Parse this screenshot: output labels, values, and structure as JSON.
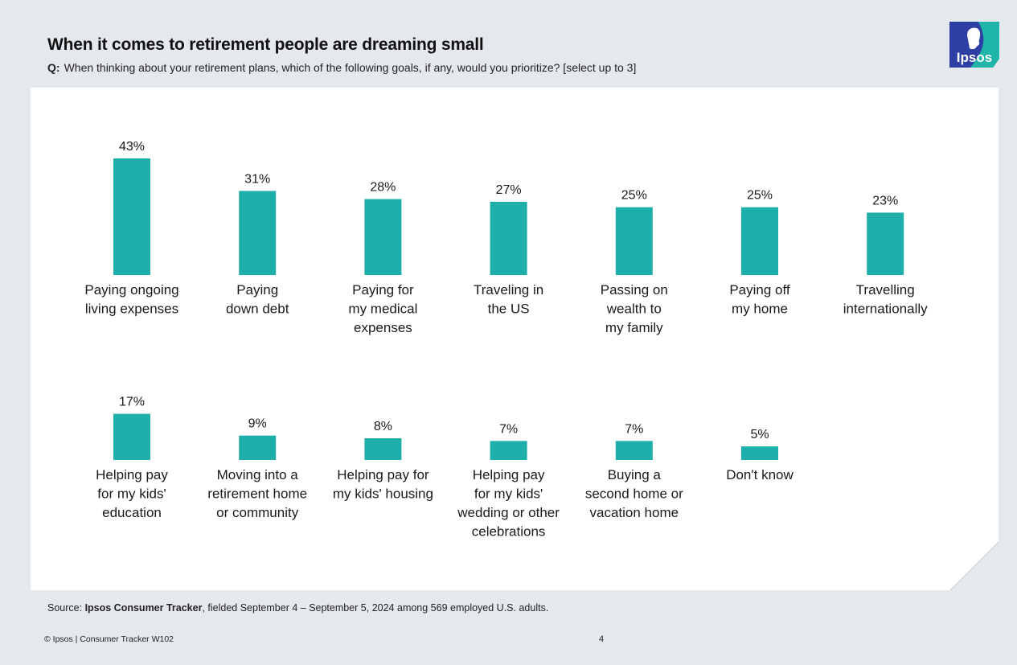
{
  "header": {
    "title": "When it comes to retirement people are dreaming small",
    "question_label": "Q:",
    "question_text": "When thinking about your retirement plans, which of the following goals, if any, would you prioritize? [select up to 3]"
  },
  "logo": {
    "text": "Ipsos",
    "colors": {
      "blue": "#2e3fa3",
      "teal": "#1fb5a8"
    }
  },
  "colors": {
    "bar": "#1fafaa",
    "panel": "#ffffff",
    "background": "#e5e8ec"
  },
  "chart_data": {
    "type": "bar",
    "unit": "%",
    "ylim": [
      0,
      43
    ],
    "rows": [
      {
        "categories": [
          [
            "Paying ongoing",
            "living expenses"
          ],
          [
            "Paying",
            "down debt"
          ],
          [
            "Paying for",
            "my medical",
            "expenses"
          ],
          [
            "Traveling in",
            "the US"
          ],
          [
            "Passing on",
            "wealth to",
            "my family"
          ],
          [
            "Paying off",
            "my home"
          ],
          [
            "Travelling",
            "internationally"
          ]
        ],
        "values": [
          43,
          31,
          28,
          27,
          25,
          25,
          23
        ],
        "value_labels": [
          "43%",
          "31%",
          "28%",
          "27%",
          "25%",
          "25%",
          "23%"
        ]
      },
      {
        "categories": [
          [
            "Helping pay",
            "for my kids'",
            "education"
          ],
          [
            "Moving into a",
            "retirement home",
            "or community"
          ],
          [
            "Helping pay for",
            "my kids' housing"
          ],
          [
            "Helping pay",
            "for my kids'",
            "wedding or other",
            "celebrations"
          ],
          [
            "Buying a",
            "second home or",
            "vacation home"
          ],
          [
            "Don't know"
          ]
        ],
        "values": [
          17,
          9,
          8,
          7,
          7,
          5
        ],
        "value_labels": [
          "17%",
          "9%",
          "8%",
          "7%",
          "7%",
          "5%"
        ]
      }
    ]
  },
  "footer": {
    "source_prefix": "Source: ",
    "source_bold": "Ipsos Consumer Tracker",
    "source_rest": ", fielded September 4 – September 5, 2024 among 569 employed U.S. adults.",
    "copyright": "© Ipsos | Consumer Tracker W102",
    "page_number": "4"
  }
}
